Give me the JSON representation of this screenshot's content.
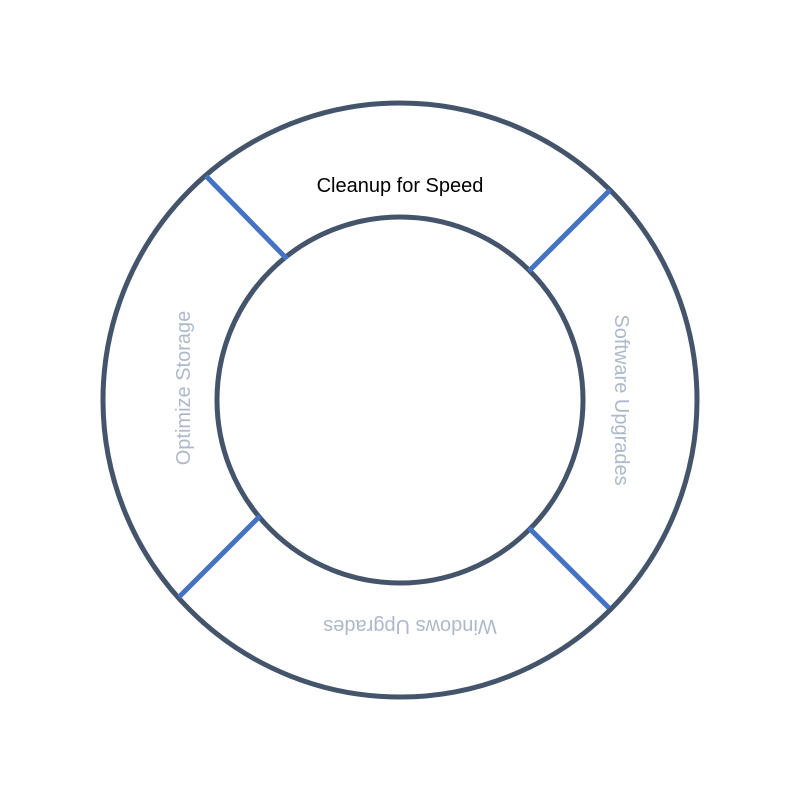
{
  "diagram": {
    "segments": [
      {
        "label": "Cleanup for Speed",
        "highlighted": true
      },
      {
        "label": "Software Upgrades",
        "highlighted": false
      },
      {
        "label": "Windows Upgrades",
        "highlighted": false
      },
      {
        "label": "Optimize Storage",
        "highlighted": false
      }
    ],
    "colors": {
      "ring": "#44546A",
      "divider": "#4472C4",
      "active_text": "#000000",
      "inactive_text": "#ADB9CA"
    }
  }
}
